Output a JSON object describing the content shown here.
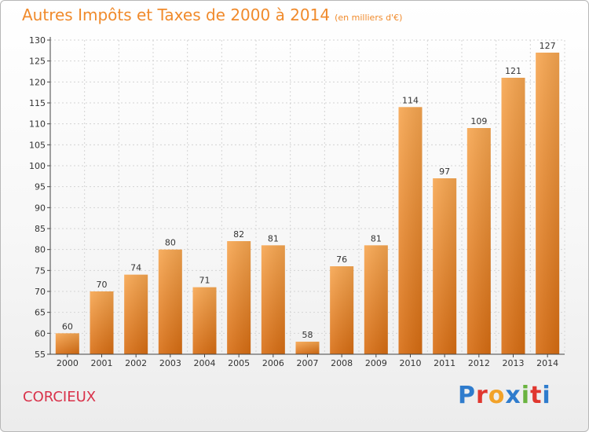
{
  "header": {
    "title": "Autres Impôts et Taxes de 2000 à 2014",
    "subtitle": "(en milliers d'€)"
  },
  "footer": {
    "commune": "CORCIEUX",
    "brand_letters": [
      "P",
      "r",
      "o",
      "x",
      "i",
      "t",
      "i"
    ],
    "brand_colors": [
      "#2f7ccd",
      "#e0372f",
      "#f2a229",
      "#2f7ccd",
      "#6ab33f",
      "#e0372f",
      "#2f7ccd"
    ]
  },
  "colors": {
    "bar_light": "#f7a650",
    "bar_dark": "#d86d12",
    "title": "#f08a2b",
    "commune": "#d9324a",
    "grid": "#d4d4d4"
  },
  "chart_data": {
    "type": "bar",
    "title": "Autres Impôts et Taxes de 2000 à 2014",
    "subtitle": "(en milliers d'€)",
    "categories": [
      "2000",
      "2001",
      "2002",
      "2003",
      "2004",
      "2005",
      "2006",
      "2007",
      "2008",
      "2009",
      "2010",
      "2011",
      "2012",
      "2013",
      "2014"
    ],
    "values": [
      60,
      70,
      74,
      80,
      71,
      82,
      81,
      58,
      76,
      81,
      114,
      97,
      109,
      121,
      127
    ],
    "data_labels": [
      "60",
      "70",
      "74",
      "80",
      "71",
      "82",
      "81",
      "58",
      "76",
      "81",
      "114",
      "97",
      "109",
      "121",
      "127"
    ],
    "ylim": [
      55,
      130
    ],
    "yticks": [
      55,
      60,
      65,
      70,
      75,
      80,
      85,
      90,
      95,
      100,
      105,
      110,
      115,
      120,
      125,
      130
    ],
    "grid": true
  }
}
